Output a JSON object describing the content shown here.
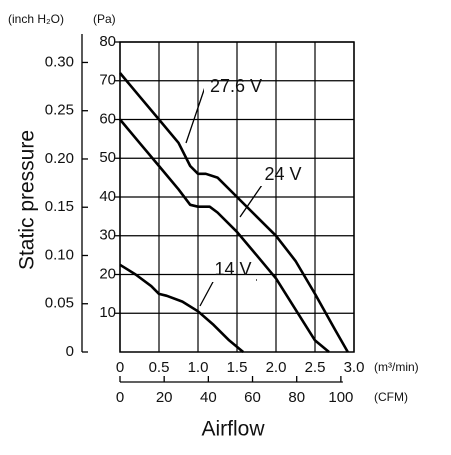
{
  "chart_data": {
    "type": "line",
    "y_label": "Static pressure",
    "x_label": "Airflow",
    "y_unit": "(Pa)",
    "y2_unit": "(inch H₂O)",
    "x_unit": "(m³/min)",
    "x2_unit": "(CFM)",
    "xlim": [
      0,
      3.0
    ],
    "xticks": [
      0,
      0.5,
      {
        "value": 1,
        "label": "1.0"
      },
      1.5,
      {
        "value": 2,
        "label": "2.0"
      },
      2.5,
      {
        "value": 3,
        "label": "3.0"
      }
    ],
    "x2lim": [
      0,
      105.94
    ],
    "x2ticks": [
      0,
      20,
      40,
      60,
      80,
      100
    ],
    "ylim": [
      0,
      80
    ],
    "yticks": [
      10,
      20,
      30,
      40,
      50,
      60,
      70,
      80
    ],
    "y2lim": [
      0,
      0.3212
    ],
    "y2ticks": [
      0,
      0.05,
      {
        "value": 0.1,
        "label": "0.10"
      },
      0.15,
      {
        "value": 0.2,
        "label": "0.20"
      },
      0.25,
      {
        "value": 0.3,
        "label": "0.30"
      }
    ],
    "grid": true,
    "series": [
      {
        "name": "27.6 V",
        "color": "#000000",
        "x": [
          0,
          0.25,
          0.5,
          0.75,
          0.9,
          1.0,
          1.1,
          1.25,
          1.5,
          1.75,
          2.0,
          2.25,
          2.5,
          2.75,
          2.92
        ],
        "values": [
          72,
          66,
          60,
          54,
          48,
          46,
          46,
          45,
          40,
          35,
          30,
          23.5,
          15,
          6,
          0
        ]
      },
      {
        "name": "24 V",
        "color": "#000000",
        "x": [
          0,
          0.25,
          0.5,
          0.75,
          0.9,
          1.0,
          1.15,
          1.25,
          1.5,
          1.75,
          2.0,
          2.25,
          2.5,
          2.68
        ],
        "values": [
          60,
          54,
          48,
          42,
          38,
          37.5,
          37.5,
          36,
          31,
          25,
          19,
          11,
          3,
          0
        ]
      },
      {
        "name": "14 V",
        "color": "#000000",
        "x": [
          0,
          0.2,
          0.4,
          0.5,
          0.6,
          0.8,
          1.0,
          1.2,
          1.4,
          1.58
        ],
        "values": [
          22.5,
          20,
          17,
          15,
          14.5,
          13,
          10.5,
          7,
          3,
          0
        ]
      }
    ]
  }
}
